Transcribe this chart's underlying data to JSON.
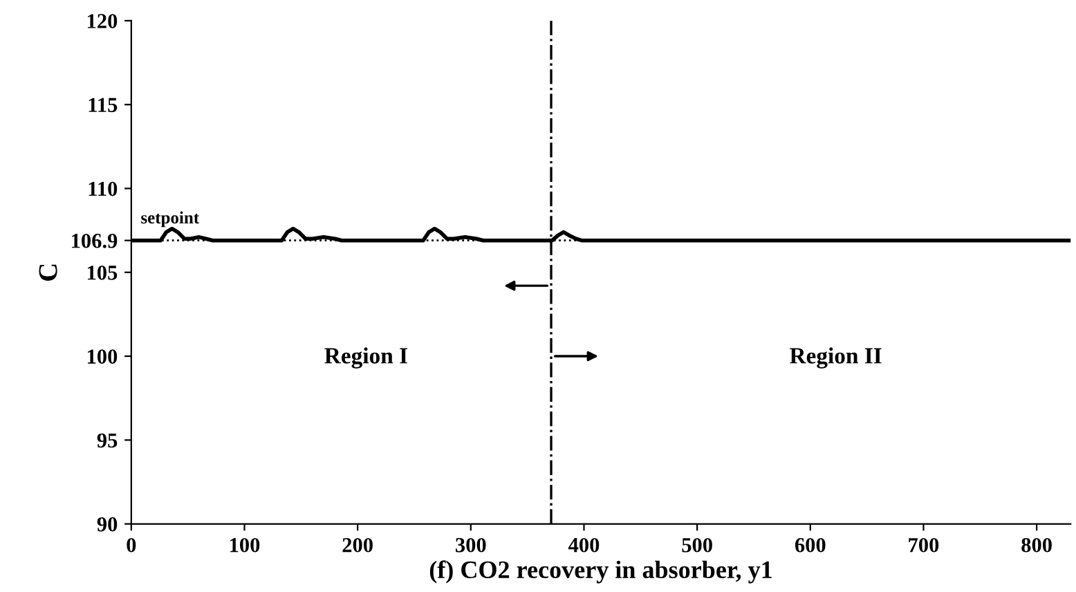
{
  "chart_data": {
    "type": "line",
    "xlabel": "(f) CO2 recovery in absorber, y1",
    "ylabel": "C",
    "x": [
      0,
      26,
      31,
      36,
      41,
      47,
      52,
      60,
      66,
      72,
      133,
      138,
      143,
      148,
      154,
      160,
      170,
      180,
      186,
      258,
      263,
      268,
      273,
      279,
      285,
      295,
      305,
      311,
      372,
      377,
      382,
      387,
      393,
      398,
      470,
      580,
      830
    ],
    "series": [
      {
        "color": "#000000",
        "values": [
          106.9,
          106.9,
          107.4,
          107.6,
          107.4,
          107.0,
          107.0,
          107.1,
          107.0,
          106.9,
          106.9,
          107.4,
          107.6,
          107.4,
          107.0,
          107.0,
          107.1,
          107.0,
          106.9,
          106.9,
          107.4,
          107.6,
          107.4,
          107.0,
          107.0,
          107.1,
          107.0,
          106.9,
          106.9,
          107.2,
          107.4,
          107.2,
          107.0,
          106.9,
          106.9,
          106.9,
          106.9
        ]
      }
    ],
    "xlim": [
      0,
      830
    ],
    "xticks": [
      0,
      100,
      200,
      300,
      400,
      500,
      600,
      700,
      800
    ],
    "ylim": [
      90,
      120
    ],
    "yticks": [
      90,
      95,
      100,
      105,
      106.9,
      110,
      115,
      120
    ],
    "ref_lines": [
      {
        "axis": "y",
        "value": 106.9,
        "label": "setpoint",
        "line_style": "dotted"
      },
      {
        "axis": "x",
        "value": 371,
        "line_style": "dashdot"
      }
    ],
    "annotations": [
      "Region I",
      "Region II"
    ],
    "grid": false,
    "marker": "none",
    "line_style": "solid"
  }
}
